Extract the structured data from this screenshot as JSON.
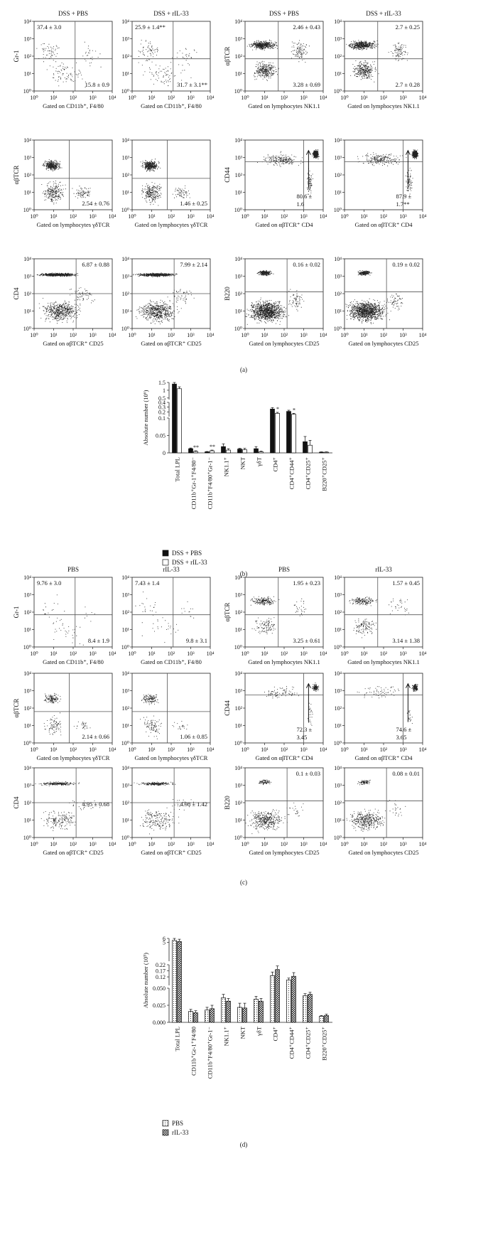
{
  "axis_ticks": [
    "10⁰",
    "10¹",
    "10²",
    "10³",
    "10⁴"
  ],
  "panel_a": {
    "letter": "(a)",
    "rows": [
      [
        {
          "title": "DSS + PBS",
          "ylabel": "Gr-1",
          "xlabel": "Gated on CD11b⁺, F4/80",
          "ann": [
            "37.4 ± 3.0",
            "15.8 ± 0.9"
          ]
        },
        {
          "title": "DSS + rIL-33",
          "ylabel": "",
          "xlabel": "Gated on CD11b⁺, F4/80",
          "ann": [
            "25.9 ± 1.4**",
            "31.7 ± 3.1**"
          ]
        },
        {
          "title": "DSS + PBS",
          "ylabel": "αβTCR",
          "xlabel": "Gated on lymphocytes NK1.1",
          "ann": [
            "2.46 ± 0.43",
            "3.28 ± 0.69"
          ]
        },
        {
          "title": "DSS + rIL-33",
          "ylabel": "",
          "xlabel": "Gated on lymphocytes NK1.1",
          "ann": [
            "2.7 ± 0.25",
            "2.7 ± 0.28"
          ]
        }
      ],
      [
        {
          "ylabel": "αβTCR",
          "xlabel": "Gated on lymphocytes γδTCR",
          "ann": [
            "2.54 ± 0.76"
          ]
        },
        {
          "ylabel": "",
          "xlabel": "Gated on lymphocytes γδTCR",
          "ann": [
            "1.46 ± 0.25"
          ]
        },
        {
          "ylabel": "CD44",
          "xlabel": "Gated on αβTCR⁺ CD4",
          "ann": [
            "80.6 ±",
            "1.6"
          ]
        },
        {
          "ylabel": "",
          "xlabel": "Gated on αβTCR⁺ CD4",
          "ann": [
            "87.9 ±",
            "1.7**"
          ]
        }
      ],
      [
        {
          "ylabel": "CD4",
          "xlabel": "Gated on αβTCR⁺ CD25",
          "ann": [
            "6.87 ± 0.88"
          ]
        },
        {
          "ylabel": "",
          "xlabel": "Gated on αβTCR⁺ CD25",
          "ann": [
            "7.99 ± 2.14"
          ]
        },
        {
          "ylabel": "B220",
          "xlabel": "Gated on lymphocytes CD25",
          "ann": [
            "0.16 ± 0.02"
          ]
        },
        {
          "ylabel": "",
          "xlabel": "Gated on lymphocytes CD25",
          "ann": [
            "0.19 ± 0.02"
          ]
        }
      ]
    ]
  },
  "panel_c": {
    "letter": "(c)",
    "rows": [
      [
        {
          "title": "PBS",
          "ylabel": "Gr-1",
          "xlabel": "Gated on CD11b⁺, F4/80",
          "ann": [
            "9.76 ± 3.0",
            "8.4 ± 1.9"
          ]
        },
        {
          "title": "rIL-33",
          "ylabel": "",
          "xlabel": "Gated on CD11b⁺, F4/80",
          "ann": [
            "7.43 ± 1.4",
            "9.8 ± 3.1"
          ]
        },
        {
          "title": "PBS",
          "ylabel": "αβTCR",
          "xlabel": "Gated on lymphocytes NK1.1",
          "ann": [
            "1.95 ± 0.23",
            "3.25 ± 0.61"
          ]
        },
        {
          "title": "rIL-33",
          "ylabel": "",
          "xlabel": "Gated on lymphocytes NK1.1",
          "ann": [
            "1.57 ± 0.45",
            "3.14 ± 1.38"
          ]
        }
      ],
      [
        {
          "ylabel": "αβTCR",
          "xlabel": "Gated on lymphocytes γδTCR",
          "ann": [
            "2.14 ± 0.66"
          ]
        },
        {
          "ylabel": "",
          "xlabel": "Gated on lymphocytes γδTCR",
          "ann": [
            "1.06 ± 0.85"
          ]
        },
        {
          "ylabel": "CD44",
          "xlabel": "Gated on αβTCR⁺ CD4",
          "ann": [
            "72.3 ±",
            "3.45"
          ]
        },
        {
          "ylabel": "",
          "xlabel": "Gated on αβTCR⁺ CD4",
          "ann": [
            "74.6 ±",
            "3.65"
          ]
        }
      ],
      [
        {
          "ylabel": "CD4",
          "xlabel": "Gated on αβTCR⁺ CD25",
          "ann": [
            "4.95 ± 0.68"
          ]
        },
        {
          "ylabel": "",
          "xlabel": "Gated on αβTCR⁺ CD25",
          "ann": [
            "4.98 ± 1.42"
          ]
        },
        {
          "ylabel": "B220",
          "xlabel": "Gated on lymphocytes CD25",
          "ann": [
            "0.1 ± 0.03"
          ]
        },
        {
          "ylabel": "",
          "xlabel": "Gated on lymphocytes CD25",
          "ann": [
            "0.08 ± 0.01"
          ]
        }
      ]
    ]
  },
  "panel_b": {
    "letter": "(b)",
    "legend": [
      "DSS + PBS",
      "DSS + rIL-33"
    ],
    "colors": {
      "series1": "#111111",
      "series2": "#ffffff"
    }
  },
  "panel_d": {
    "letter": "(d)",
    "legend": [
      "PBS",
      "rIL-33"
    ]
  },
  "chart_data": [
    {
      "type": "bar",
      "ylabel": "Absolute number (10⁶)",
      "categories": [
        "Total LPL",
        "CD11b⁺Gr-1⁺F4/80⁻",
        "CD11b⁺F4/80⁺Gr-1⁻",
        "NK1.1⁺",
        "NKT",
        "γδT",
        "CD4⁺",
        "CD4⁺CD44⁺",
        "CD4⁺CD25⁺",
        "B220⁺CD25⁺"
      ],
      "series": [
        {
          "name": "DSS + PBS",
          "values": [
            1.4,
            0.012,
            0.003,
            0.018,
            0.011,
            0.012,
            0.26,
            0.21,
            0.032,
            0.002
          ],
          "errors": [
            0.25,
            0.002,
            0.001,
            0.008,
            0.002,
            0.006,
            0.03,
            0.025,
            0.015,
            0.001
          ]
        },
        {
          "name": "DSS + rIL-33",
          "values": [
            1.1,
            0.004,
            0.006,
            0.008,
            0.009,
            0.003,
            0.17,
            0.15,
            0.022,
            0.002
          ],
          "errors": [
            0.12,
            0.002,
            0.002,
            0.004,
            0.004,
            0.002,
            0.02,
            0.02,
            0.014,
            0.001
          ]
        }
      ],
      "significance": [
        "",
        "**",
        "**",
        "",
        "",
        "",
        "*",
        "*",
        "",
        ""
      ],
      "axis_segments": [
        {
          "range": [
            0,
            0.1
          ],
          "ticks": [
            "0",
            "0.05",
            "0.1"
          ]
        },
        {
          "range": [
            0.1,
            0.4
          ],
          "ticks": [
            "0.2",
            "0.3",
            "0.4"
          ]
        },
        {
          "range": [
            0.4,
            1.5
          ],
          "ticks": [
            "0.5",
            "1",
            "1.5"
          ]
        }
      ]
    },
    {
      "type": "bar",
      "ylabel": "Absolute number (10⁵)",
      "categories": [
        "Total LPL",
        "CD11b⁺Gr-1⁺F4/80",
        "CD11b⁺F4/80⁺Gr-1⁻",
        "NK1.1⁺",
        "NKT",
        "γδT",
        "CD4⁺",
        "CD4⁺CD44⁺",
        "CD4⁺CD25⁺",
        "B220⁺CD25⁺"
      ],
      "series": [
        {
          "name": "PBS",
          "values": [
            5.5,
            0.016,
            0.018,
            0.036,
            0.022,
            0.034,
            0.13,
            0.095,
            0.039,
            0.009
          ],
          "errors": [
            0.7,
            0.003,
            0.004,
            0.005,
            0.006,
            0.004,
            0.03,
            0.015,
            0.003,
            0.001
          ]
        },
        {
          "name": "rIL-33",
          "values": [
            5.2,
            0.014,
            0.02,
            0.031,
            0.021,
            0.031,
            0.18,
            0.125,
            0.041,
            0.01
          ],
          "errors": [
            0.6,
            0.003,
            0.005,
            0.004,
            0.007,
            0.004,
            0.03,
            0.03,
            0.003,
            0.002
          ]
        }
      ],
      "axis_segments": [
        {
          "range": [
            0,
            0.05
          ],
          "ticks": [
            "0.000",
            "0.025",
            "0.050"
          ]
        },
        {
          "range": [
            0.05,
            0.22
          ],
          "ticks": [
            "0.12",
            "0.17",
            "0.22"
          ]
        },
        {
          "range": [
            0.22,
            6
          ],
          "ticks": [
            "5",
            "6"
          ]
        }
      ]
    }
  ]
}
